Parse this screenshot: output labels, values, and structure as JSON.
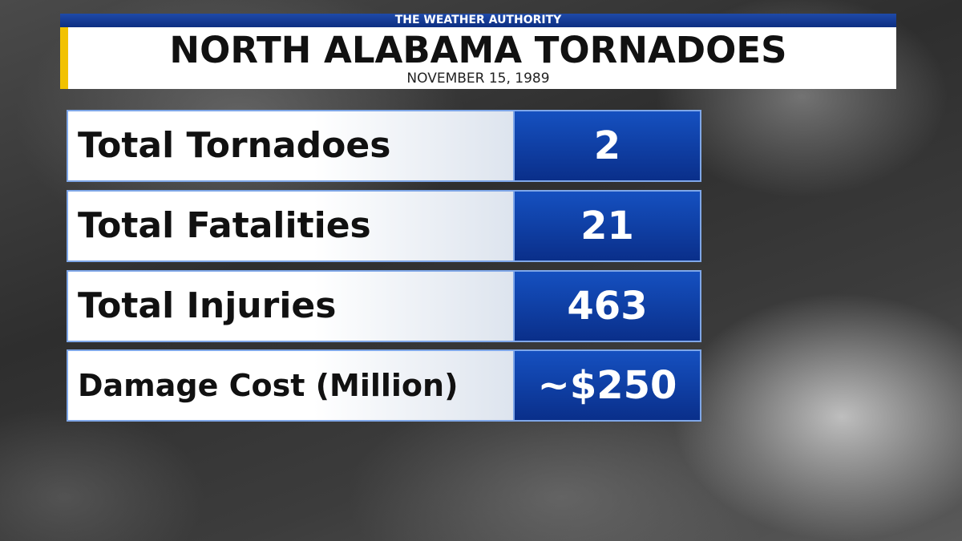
{
  "header": {
    "kicker": "THE WEATHER AUTHORITY",
    "title": "NORTH ALABAMA TORNADOES",
    "date": "NOVEMBER 15, 1989"
  },
  "table": {
    "rows": [
      [
        "Total Tornadoes",
        2
      ],
      [
        "Total Fatalities",
        21
      ],
      [
        "Total Injuries",
        463
      ],
      [
        "Damage Cost (Million)",
        "~$250"
      ]
    ]
  }
}
